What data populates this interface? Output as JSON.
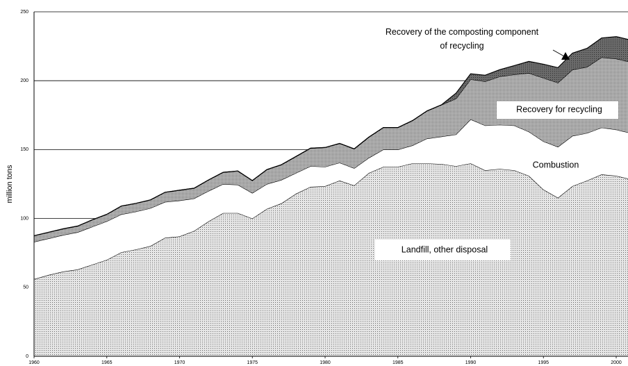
{
  "chart_data": {
    "type": "stacked_area",
    "y_label": "million tons",
    "x": [
      1960,
      1961,
      1962,
      1963,
      1964,
      1965,
      1966,
      1967,
      1968,
      1969,
      1970,
      1971,
      1972,
      1973,
      1974,
      1975,
      1976,
      1977,
      1978,
      1979,
      1980,
      1981,
      1982,
      1983,
      1984,
      1985,
      1986,
      1987,
      1988,
      1989,
      1990,
      1991,
      1992,
      1993,
      1994,
      1995,
      1996,
      1997,
      1998,
      1999,
      2000,
      2001
    ],
    "xlim": [
      1960,
      2001
    ],
    "xticks": [
      1960,
      1965,
      1970,
      1975,
      1980,
      1985,
      1990,
      1995,
      2000
    ],
    "ylim": [
      0,
      250
    ],
    "yticks": [
      0,
      50,
      100,
      150,
      200,
      250
    ],
    "grid": true,
    "series": [
      {
        "name": "Landfill, other disposal",
        "color": "#e6e6e6",
        "values": [
          56,
          59,
          61.5,
          63,
          66.5,
          70,
          75.5,
          77.5,
          80,
          86,
          87,
          91,
          98,
          104,
          104,
          100,
          107,
          111,
          118,
          123,
          123.5,
          127.5,
          124,
          133,
          137.5,
          137.5,
          140,
          140,
          139.5,
          138,
          140,
          135,
          136,
          135,
          131,
          121,
          115,
          123.5,
          127.5,
          132,
          131,
          128.5
        ]
      },
      {
        "name": "Combustion",
        "color": "#ffffff",
        "values": [
          27,
          26.5,
          26.5,
          27,
          27.5,
          28,
          27.5,
          27.5,
          27.5,
          26,
          26,
          23.5,
          22,
          21,
          20.5,
          18.5,
          18,
          17,
          15,
          15,
          14,
          13,
          12.5,
          11,
          12.5,
          12.5,
          13,
          18,
          20,
          23,
          32,
          32.5,
          32,
          32.5,
          32,
          35,
          37,
          36.5,
          34.5,
          34,
          33.5,
          33.5
        ]
      },
      {
        "name": "Recovery for recycling",
        "color": "#bdbdbd",
        "values": [
          4.5,
          4.5,
          4.5,
          4.5,
          5,
          5,
          6,
          6,
          6,
          7,
          7.5,
          7.5,
          8,
          8.5,
          10,
          9,
          10.5,
          11,
          12,
          13,
          14,
          14,
          14,
          15,
          16,
          16,
          18,
          20,
          23,
          26,
          29,
          32,
          35,
          37,
          42.5,
          46,
          46.5,
          48,
          48,
          51,
          51.5,
          51.5
        ]
      },
      {
        "name": "Recovery of the composting component of recycling",
        "color": "#6a6a6a",
        "values": [
          0,
          0,
          0,
          0,
          0,
          0,
          0,
          0,
          0,
          0,
          0,
          0,
          0,
          0,
          0,
          0,
          0,
          0,
          0,
          0,
          0,
          0,
          0,
          0,
          0,
          0,
          0,
          0,
          0,
          4,
          4,
          4.5,
          5,
          6.5,
          8.5,
          10,
          11,
          12,
          13.5,
          14,
          16,
          16
        ]
      }
    ]
  }
}
